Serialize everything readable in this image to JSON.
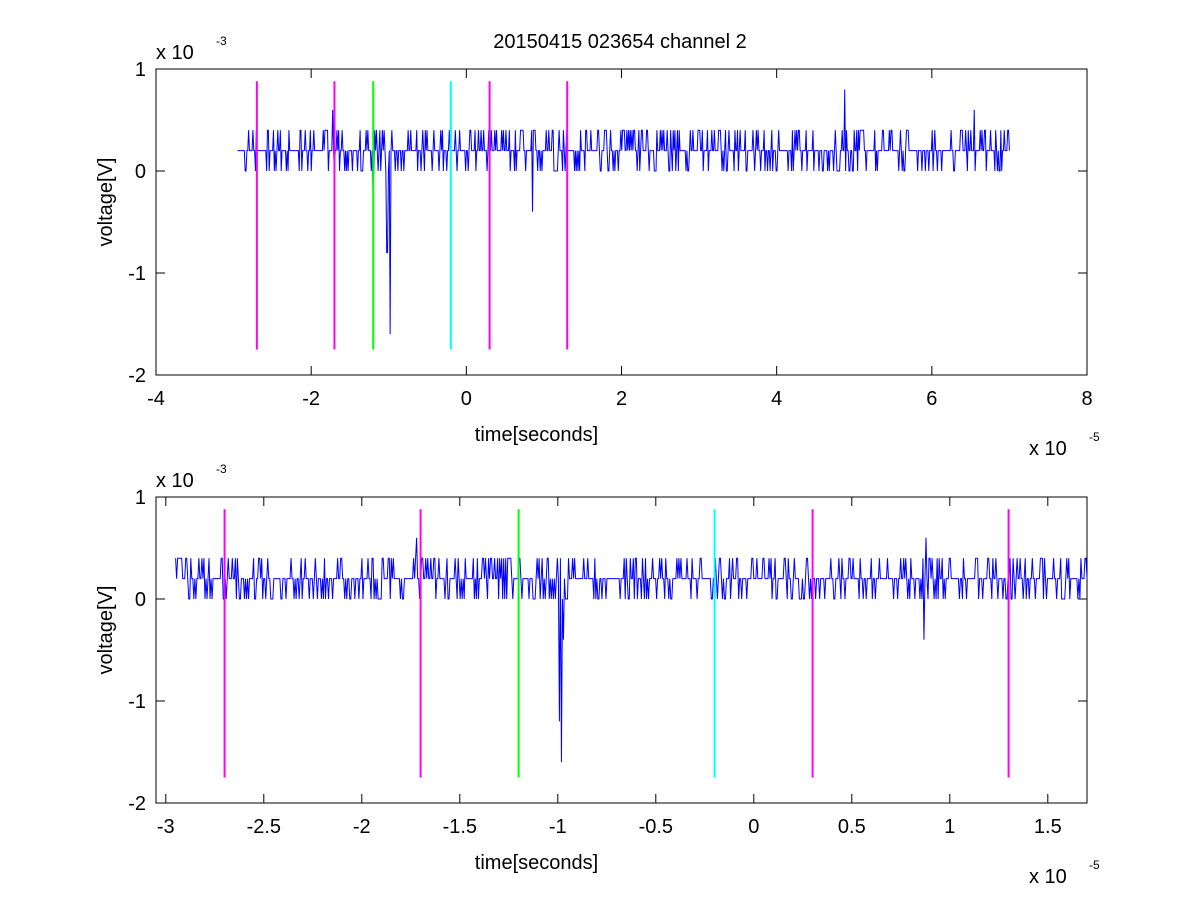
{
  "figure": {
    "title": "20150415 023654 channel 2"
  },
  "chart_data": [
    {
      "type": "line",
      "title": "20150415 023654 channel 2",
      "xlabel": "time[seconds]",
      "ylabel": "voltage[V]",
      "x_exponent_label": "x 10",
      "x_exponent": "-5",
      "y_exponent_label": "x 10",
      "y_exponent": "-3",
      "xlim": [
        -4,
        8
      ],
      "ylim": [
        -2,
        1
      ],
      "xticks": [
        -4,
        -2,
        0,
        2,
        4,
        6,
        8
      ],
      "xtick_labels": [
        "-4",
        "-2",
        "0",
        "2",
        "4",
        "6",
        "8"
      ],
      "yticks": [
        -2,
        -1,
        0,
        1
      ],
      "ytick_labels": [
        "-2",
        "-1",
        "0",
        "1"
      ],
      "grid": false,
      "series": [
        {
          "color": "#0000ff",
          "x_range": [
            -2.95,
            7.0
          ],
          "baseline": 0.2,
          "spikes": [
            {
              "x": -1.02,
              "y": -0.8
            },
            {
              "x": -0.98,
              "y": -1.6
            },
            {
              "x": -1.2,
              "y": -0.2
            },
            {
              "x": -1.72,
              "y": 0.6
            },
            {
              "x": 0.85,
              "y": -0.4
            },
            {
              "x": 4.88,
              "y": 0.8
            },
            {
              "x": 6.55,
              "y": 0.6
            }
          ]
        }
      ],
      "vlines": [
        {
          "x": -2.7,
          "color": "#ff00ff",
          "ymin": -1.75,
          "ymax": 0.88
        },
        {
          "x": -1.7,
          "color": "#ff00ff",
          "ymin": -1.75,
          "ymax": 0.88
        },
        {
          "x": -1.2,
          "color": "#00ff00",
          "ymin": -1.75,
          "ymax": 0.88
        },
        {
          "x": -0.2,
          "color": "#00ffff",
          "ymin": -1.75,
          "ymax": 0.88
        },
        {
          "x": 0.3,
          "color": "#ff00ff",
          "ymin": -1.75,
          "ymax": 0.88
        },
        {
          "x": 1.3,
          "color": "#ff00ff",
          "ymin": -1.75,
          "ymax": 0.88
        }
      ]
    },
    {
      "type": "line",
      "title": "",
      "xlabel": "time[seconds]",
      "ylabel": "voltage[V]",
      "x_exponent_label": "x 10",
      "x_exponent": "-5",
      "y_exponent_label": "x 10",
      "y_exponent": "-3",
      "xlim": [
        -3.05,
        1.7
      ],
      "ylim": [
        -2,
        1
      ],
      "xticks": [
        -3,
        -2.5,
        -2,
        -1.5,
        -1,
        -0.5,
        0,
        0.5,
        1,
        1.5
      ],
      "xtick_labels": [
        "-3",
        "-2.5",
        "-2",
        "-1.5",
        "-1",
        "-0.5",
        "0",
        "0.5",
        "1",
        "1.5"
      ],
      "yticks": [
        -2,
        -1,
        0,
        1
      ],
      "ytick_labels": [
        "-2",
        "-1",
        "0",
        "1"
      ],
      "grid": false,
      "series": [
        {
          "color": "#0000ff",
          "x_range": [
            -2.95,
            1.7
          ],
          "baseline": 0.2,
          "spikes": [
            {
              "x": -0.99,
              "y": -1.2
            },
            {
              "x": -0.98,
              "y": -1.6
            },
            {
              "x": -0.97,
              "y": -0.4
            },
            {
              "x": -1.72,
              "y": 0.6
            },
            {
              "x": 0.87,
              "y": -0.4
            },
            {
              "x": 0.88,
              "y": 0.6
            }
          ]
        }
      ],
      "vlines": [
        {
          "x": -2.7,
          "color": "#ff00ff",
          "ymin": -1.75,
          "ymax": 0.88
        },
        {
          "x": -1.7,
          "color": "#ff00ff",
          "ymin": -1.75,
          "ymax": 0.88
        },
        {
          "x": -1.2,
          "color": "#00ff00",
          "ymin": -1.75,
          "ymax": 0.88
        },
        {
          "x": -0.2,
          "color": "#00ffff",
          "ymin": -1.75,
          "ymax": 0.88
        },
        {
          "x": 0.3,
          "color": "#ff00ff",
          "ymin": -1.75,
          "ymax": 0.88
        },
        {
          "x": 1.3,
          "color": "#ff00ff",
          "ymin": -1.75,
          "ymax": 0.88
        }
      ]
    }
  ]
}
